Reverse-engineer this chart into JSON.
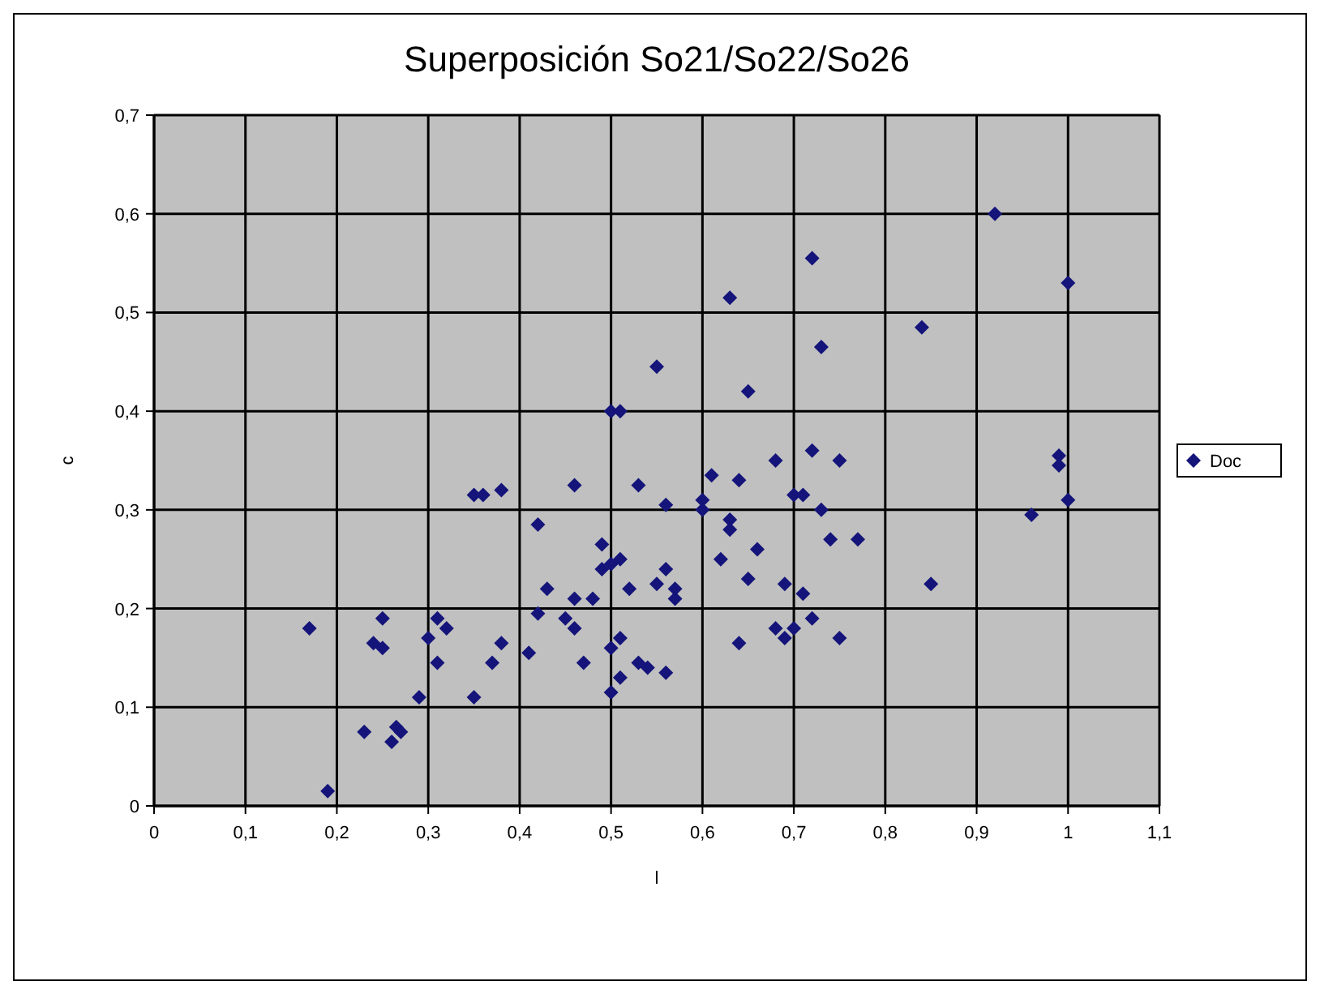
{
  "chart_data": {
    "type": "scatter",
    "title": "Superposición So21/So22/So26",
    "xlabel": "l",
    "ylabel": "c",
    "xlim": [
      0,
      1.1
    ],
    "ylim": [
      0,
      0.7
    ],
    "xticks": [
      0,
      {
        "value": 0.1,
        "label": "0,1"
      },
      {
        "value": 0.2,
        "label": "0,2"
      },
      {
        "value": 0.3,
        "label": "0,3"
      },
      {
        "value": 0.4,
        "label": "0,4"
      },
      {
        "value": 0.5,
        "label": "0,5"
      },
      {
        "value": 0.6,
        "label": "0,6"
      },
      {
        "value": 0.7,
        "label": "0,7"
      },
      {
        "value": 0.8,
        "label": "0,8"
      },
      {
        "value": 0.9,
        "label": "0,9"
      },
      1,
      {
        "value": 1.1,
        "label": "1,1"
      }
    ],
    "yticks": [
      0,
      {
        "value": 0.1,
        "label": "0,1"
      },
      {
        "value": 0.2,
        "label": "0,2"
      },
      {
        "value": 0.3,
        "label": "0,3"
      },
      {
        "value": 0.4,
        "label": "0,4"
      },
      {
        "value": 0.5,
        "label": "0,5"
      },
      {
        "value": 0.6,
        "label": "0,6"
      },
      {
        "value": 0.7,
        "label": "0,7"
      }
    ],
    "grid": true,
    "legend": "right",
    "marker": "diamond",
    "series": [
      {
        "name": "Doc",
        "color": "#14147a",
        "x": [
          0.17,
          0.19,
          0.23,
          0.24,
          0.25,
          0.25,
          0.26,
          0.265,
          0.27,
          0.29,
          0.3,
          0.31,
          0.31,
          0.32,
          0.35,
          0.35,
          0.36,
          0.37,
          0.38,
          0.38,
          0.41,
          0.42,
          0.42,
          0.43,
          0.45,
          0.46,
          0.46,
          0.46,
          0.47,
          0.48,
          0.49,
          0.49,
          0.5,
          0.5,
          0.5,
          0.5,
          0.51,
          0.51,
          0.51,
          0.51,
          0.52,
          0.53,
          0.53,
          0.54,
          0.55,
          0.55,
          0.56,
          0.56,
          0.56,
          0.57,
          0.57,
          0.6,
          0.6,
          0.61,
          0.62,
          0.63,
          0.63,
          0.63,
          0.64,
          0.64,
          0.65,
          0.65,
          0.66,
          0.68,
          0.68,
          0.69,
          0.69,
          0.7,
          0.7,
          0.71,
          0.71,
          0.72,
          0.72,
          0.72,
          0.73,
          0.73,
          0.74,
          0.75,
          0.75,
          0.77,
          0.84,
          0.85,
          0.92,
          0.96,
          0.99,
          0.99,
          1.0,
          1.0
        ],
        "values": [
          0.18,
          0.015,
          0.075,
          0.165,
          0.19,
          0.16,
          0.065,
          0.08,
          0.075,
          0.11,
          0.17,
          0.145,
          0.19,
          0.18,
          0.11,
          0.315,
          0.315,
          0.145,
          0.165,
          0.32,
          0.155,
          0.285,
          0.195,
          0.22,
          0.19,
          0.18,
          0.325,
          0.21,
          0.145,
          0.21,
          0.265,
          0.24,
          0.115,
          0.16,
          0.245,
          0.4,
          0.4,
          0.17,
          0.25,
          0.13,
          0.22,
          0.325,
          0.145,
          0.14,
          0.445,
          0.225,
          0.135,
          0.305,
          0.24,
          0.21,
          0.22,
          0.3,
          0.31,
          0.335,
          0.25,
          0.29,
          0.28,
          0.515,
          0.33,
          0.165,
          0.42,
          0.23,
          0.26,
          0.18,
          0.35,
          0.225,
          0.17,
          0.315,
          0.18,
          0.315,
          0.215,
          0.555,
          0.19,
          0.36,
          0.465,
          0.3,
          0.27,
          0.35,
          0.17,
          0.27,
          0.485,
          0.225,
          0.6,
          0.295,
          0.345,
          0.355,
          0.31,
          0.53
        ]
      }
    ]
  }
}
